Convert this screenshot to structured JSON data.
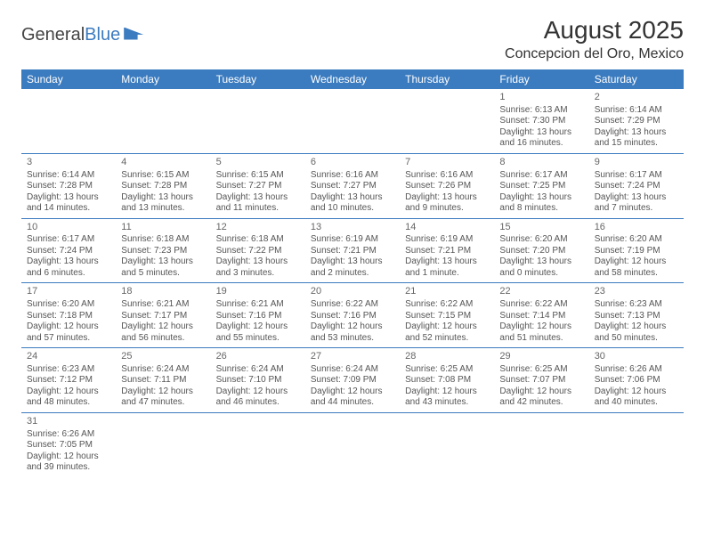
{
  "logo": {
    "text_general": "General",
    "text_blue": "Blue"
  },
  "header": {
    "month_title": "August 2025",
    "location": "Concepcion del Oro, Mexico"
  },
  "colors": {
    "header_bg": "#3b7bbf",
    "header_text": "#ffffff",
    "cell_border": "#3b7bbf",
    "body_text": "#555555",
    "title_text": "#333333"
  },
  "weekdays": [
    "Sunday",
    "Monday",
    "Tuesday",
    "Wednesday",
    "Thursday",
    "Friday",
    "Saturday"
  ],
  "weeks": [
    [
      null,
      null,
      null,
      null,
      null,
      {
        "n": "1",
        "sr": "Sunrise: 6:13 AM",
        "ss": "Sunset: 7:30 PM",
        "d1": "Daylight: 13 hours",
        "d2": "and 16 minutes."
      },
      {
        "n": "2",
        "sr": "Sunrise: 6:14 AM",
        "ss": "Sunset: 7:29 PM",
        "d1": "Daylight: 13 hours",
        "d2": "and 15 minutes."
      }
    ],
    [
      {
        "n": "3",
        "sr": "Sunrise: 6:14 AM",
        "ss": "Sunset: 7:28 PM",
        "d1": "Daylight: 13 hours",
        "d2": "and 14 minutes."
      },
      {
        "n": "4",
        "sr": "Sunrise: 6:15 AM",
        "ss": "Sunset: 7:28 PM",
        "d1": "Daylight: 13 hours",
        "d2": "and 13 minutes."
      },
      {
        "n": "5",
        "sr": "Sunrise: 6:15 AM",
        "ss": "Sunset: 7:27 PM",
        "d1": "Daylight: 13 hours",
        "d2": "and 11 minutes."
      },
      {
        "n": "6",
        "sr": "Sunrise: 6:16 AM",
        "ss": "Sunset: 7:27 PM",
        "d1": "Daylight: 13 hours",
        "d2": "and 10 minutes."
      },
      {
        "n": "7",
        "sr": "Sunrise: 6:16 AM",
        "ss": "Sunset: 7:26 PM",
        "d1": "Daylight: 13 hours",
        "d2": "and 9 minutes."
      },
      {
        "n": "8",
        "sr": "Sunrise: 6:17 AM",
        "ss": "Sunset: 7:25 PM",
        "d1": "Daylight: 13 hours",
        "d2": "and 8 minutes."
      },
      {
        "n": "9",
        "sr": "Sunrise: 6:17 AM",
        "ss": "Sunset: 7:24 PM",
        "d1": "Daylight: 13 hours",
        "d2": "and 7 minutes."
      }
    ],
    [
      {
        "n": "10",
        "sr": "Sunrise: 6:17 AM",
        "ss": "Sunset: 7:24 PM",
        "d1": "Daylight: 13 hours",
        "d2": "and 6 minutes."
      },
      {
        "n": "11",
        "sr": "Sunrise: 6:18 AM",
        "ss": "Sunset: 7:23 PM",
        "d1": "Daylight: 13 hours",
        "d2": "and 5 minutes."
      },
      {
        "n": "12",
        "sr": "Sunrise: 6:18 AM",
        "ss": "Sunset: 7:22 PM",
        "d1": "Daylight: 13 hours",
        "d2": "and 3 minutes."
      },
      {
        "n": "13",
        "sr": "Sunrise: 6:19 AM",
        "ss": "Sunset: 7:21 PM",
        "d1": "Daylight: 13 hours",
        "d2": "and 2 minutes."
      },
      {
        "n": "14",
        "sr": "Sunrise: 6:19 AM",
        "ss": "Sunset: 7:21 PM",
        "d1": "Daylight: 13 hours",
        "d2": "and 1 minute."
      },
      {
        "n": "15",
        "sr": "Sunrise: 6:20 AM",
        "ss": "Sunset: 7:20 PM",
        "d1": "Daylight: 13 hours",
        "d2": "and 0 minutes."
      },
      {
        "n": "16",
        "sr": "Sunrise: 6:20 AM",
        "ss": "Sunset: 7:19 PM",
        "d1": "Daylight: 12 hours",
        "d2": "and 58 minutes."
      }
    ],
    [
      {
        "n": "17",
        "sr": "Sunrise: 6:20 AM",
        "ss": "Sunset: 7:18 PM",
        "d1": "Daylight: 12 hours",
        "d2": "and 57 minutes."
      },
      {
        "n": "18",
        "sr": "Sunrise: 6:21 AM",
        "ss": "Sunset: 7:17 PM",
        "d1": "Daylight: 12 hours",
        "d2": "and 56 minutes."
      },
      {
        "n": "19",
        "sr": "Sunrise: 6:21 AM",
        "ss": "Sunset: 7:16 PM",
        "d1": "Daylight: 12 hours",
        "d2": "and 55 minutes."
      },
      {
        "n": "20",
        "sr": "Sunrise: 6:22 AM",
        "ss": "Sunset: 7:16 PM",
        "d1": "Daylight: 12 hours",
        "d2": "and 53 minutes."
      },
      {
        "n": "21",
        "sr": "Sunrise: 6:22 AM",
        "ss": "Sunset: 7:15 PM",
        "d1": "Daylight: 12 hours",
        "d2": "and 52 minutes."
      },
      {
        "n": "22",
        "sr": "Sunrise: 6:22 AM",
        "ss": "Sunset: 7:14 PM",
        "d1": "Daylight: 12 hours",
        "d2": "and 51 minutes."
      },
      {
        "n": "23",
        "sr": "Sunrise: 6:23 AM",
        "ss": "Sunset: 7:13 PM",
        "d1": "Daylight: 12 hours",
        "d2": "and 50 minutes."
      }
    ],
    [
      {
        "n": "24",
        "sr": "Sunrise: 6:23 AM",
        "ss": "Sunset: 7:12 PM",
        "d1": "Daylight: 12 hours",
        "d2": "and 48 minutes."
      },
      {
        "n": "25",
        "sr": "Sunrise: 6:24 AM",
        "ss": "Sunset: 7:11 PM",
        "d1": "Daylight: 12 hours",
        "d2": "and 47 minutes."
      },
      {
        "n": "26",
        "sr": "Sunrise: 6:24 AM",
        "ss": "Sunset: 7:10 PM",
        "d1": "Daylight: 12 hours",
        "d2": "and 46 minutes."
      },
      {
        "n": "27",
        "sr": "Sunrise: 6:24 AM",
        "ss": "Sunset: 7:09 PM",
        "d1": "Daylight: 12 hours",
        "d2": "and 44 minutes."
      },
      {
        "n": "28",
        "sr": "Sunrise: 6:25 AM",
        "ss": "Sunset: 7:08 PM",
        "d1": "Daylight: 12 hours",
        "d2": "and 43 minutes."
      },
      {
        "n": "29",
        "sr": "Sunrise: 6:25 AM",
        "ss": "Sunset: 7:07 PM",
        "d1": "Daylight: 12 hours",
        "d2": "and 42 minutes."
      },
      {
        "n": "30",
        "sr": "Sunrise: 6:26 AM",
        "ss": "Sunset: 7:06 PM",
        "d1": "Daylight: 12 hours",
        "d2": "and 40 minutes."
      }
    ],
    [
      {
        "n": "31",
        "sr": "Sunrise: 6:26 AM",
        "ss": "Sunset: 7:05 PM",
        "d1": "Daylight: 12 hours",
        "d2": "and 39 minutes."
      },
      null,
      null,
      null,
      null,
      null,
      null
    ]
  ]
}
